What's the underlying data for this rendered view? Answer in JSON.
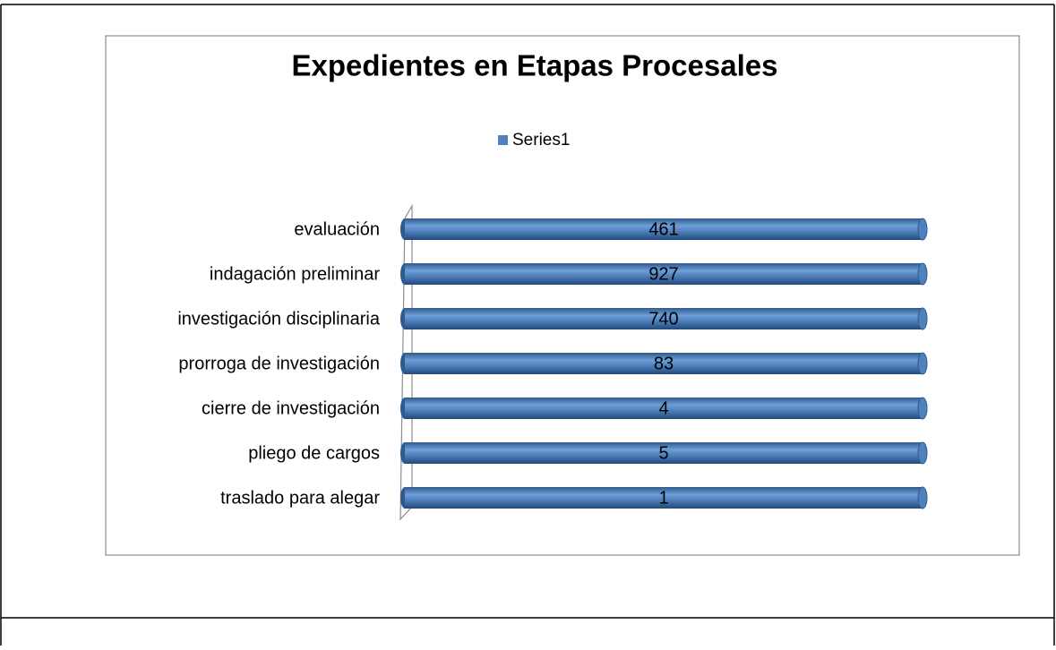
{
  "chart_data": {
    "type": "bar",
    "orientation": "horizontal",
    "stacking": "percent",
    "title": "Expedientes en Etapas Procesales",
    "categories": [
      "evaluación",
      "indagación preliminar",
      "investigación disciplinaria",
      "prorroga de investigación",
      "cierre de investigación",
      "pliego de cargos",
      "traslado para alegar"
    ],
    "series": [
      {
        "name": "Series1",
        "color": "#4f81bd",
        "values": [
          461,
          927,
          740,
          83,
          4,
          5,
          1
        ]
      }
    ],
    "legend": "top"
  }
}
